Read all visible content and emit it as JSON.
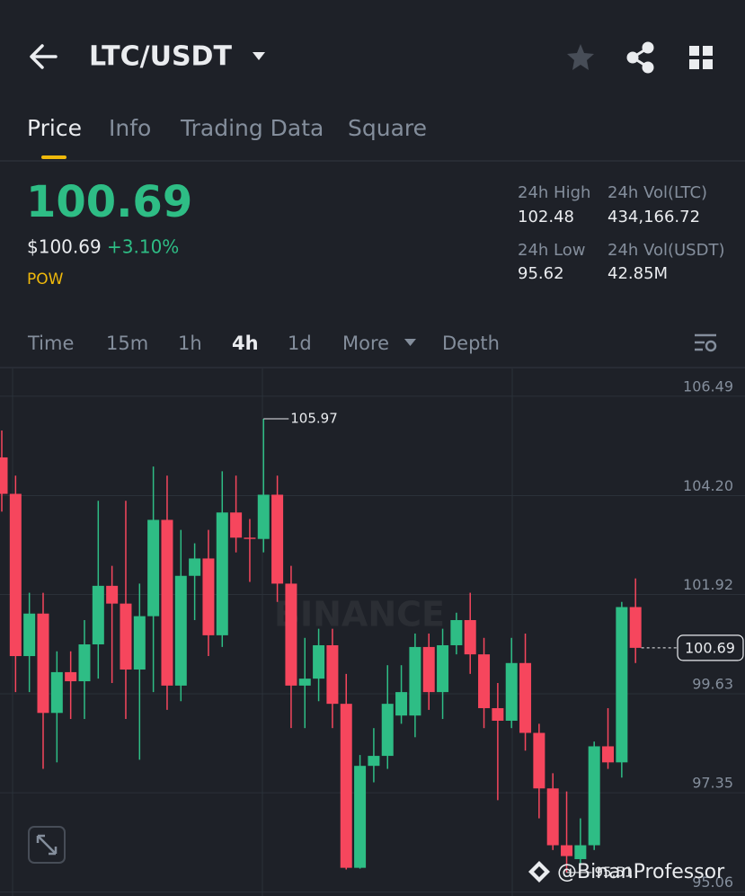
{
  "header": {
    "pair": "LTC/USDT"
  },
  "tabs": [
    "Price",
    "Info",
    "Trading Data",
    "Square"
  ],
  "price": {
    "last": "100.69",
    "usd": "$100.69",
    "change": "+3.10%",
    "tag": "POW"
  },
  "stats": [
    {
      "label": "24h High",
      "value": "102.48"
    },
    {
      "label": "24h Vol(LTC)",
      "value": "434,166.72"
    },
    {
      "label": "24h Low",
      "value": "95.62"
    },
    {
      "label": "24h Vol(USDT)",
      "value": "42.85M"
    }
  ],
  "intervals": [
    "Time",
    "15m",
    "1h",
    "4h",
    "1d",
    "More",
    "Depth"
  ],
  "watermark_logo": "BINANCE",
  "credit": "@BinanProfessor",
  "chart_data": {
    "type": "candlestick",
    "open": [
      105.08,
      104.24,
      100.5,
      101.48,
      99.19,
      100.13,
      99.92,
      100.77,
      102.12,
      101.71,
      100.19,
      101.42,
      103.64,
      99.82,
      102.35,
      102.75,
      100.98,
      103.81,
      103.23,
      103.2,
      104.22,
      102.17,
      99.82,
      99.98,
      100.75,
      99.4,
      95.62,
      97.97,
      98.2,
      99.13,
      99.13,
      100.71,
      99.67,
      100.75,
      101.33,
      100.54,
      99.3,
      99.01,
      100.34,
      98.73,
      97.45,
      96.14,
      95.82,
      96.14,
      98.42,
      98.05,
      101.63
    ],
    "high": [
      105.7,
      104.66,
      101.96,
      101.96,
      100.61,
      100.61,
      101.33,
      104.08,
      102.58,
      104.08,
      102.17,
      104.87,
      104.66,
      103.41,
      103.1,
      103.41,
      104.76,
      104.66,
      103.66,
      105.97,
      104.66,
      102.58,
      100.92,
      101.13,
      101.13,
      100.09,
      98.22,
      98.84,
      100.29,
      100.29,
      101.02,
      101.02,
      101.13,
      101.5,
      101.96,
      100.92,
      99.88,
      100.92,
      101.02,
      98.94,
      97.8,
      97.38,
      96.76,
      98.53,
      99.3,
      101.75,
      102.29
    ],
    "low": [
      103.83,
      99.67,
      99.67,
      97.9,
      98.05,
      99.05,
      99.05,
      99.98,
      99.88,
      99.05,
      98.11,
      99.67,
      99.26,
      99.46,
      101.33,
      100.5,
      100.71,
      102.89,
      102.21,
      102.89,
      101.75,
      98.84,
      98.84,
      99.46,
      98.84,
      95.58,
      95.6,
      97.59,
      97.9,
      98.94,
      98.63,
      99.26,
      99.05,
      100.54,
      100.09,
      98.84,
      97.18,
      98.84,
      98.32,
      96.76,
      96.03,
      95.51,
      95.72,
      96.03,
      97.9,
      97.7,
      100.34
    ],
    "close": [
      104.24,
      100.5,
      101.48,
      99.19,
      100.13,
      99.92,
      100.77,
      102.12,
      101.71,
      100.19,
      101.42,
      103.64,
      99.82,
      102.35,
      102.75,
      100.98,
      103.81,
      103.23,
      103.2,
      104.22,
      102.17,
      99.82,
      99.98,
      100.75,
      99.4,
      95.62,
      97.97,
      98.2,
      99.4,
      99.67,
      100.71,
      99.67,
      100.75,
      101.33,
      100.54,
      99.3,
      99.01,
      100.34,
      98.73,
      97.45,
      96.14,
      95.89,
      96.14,
      98.42,
      98.05,
      101.63,
      100.69
    ],
    "ylim": [
      94.97,
      107.13
    ],
    "yticks": [
      106.49,
      {
        "value": 104.2,
        "label": "104.20"
      },
      101.92,
      99.63,
      97.35,
      95.06
    ],
    "grid": true,
    "up_color": "#2ebd85",
    "down_color": "#f6465d"
  }
}
